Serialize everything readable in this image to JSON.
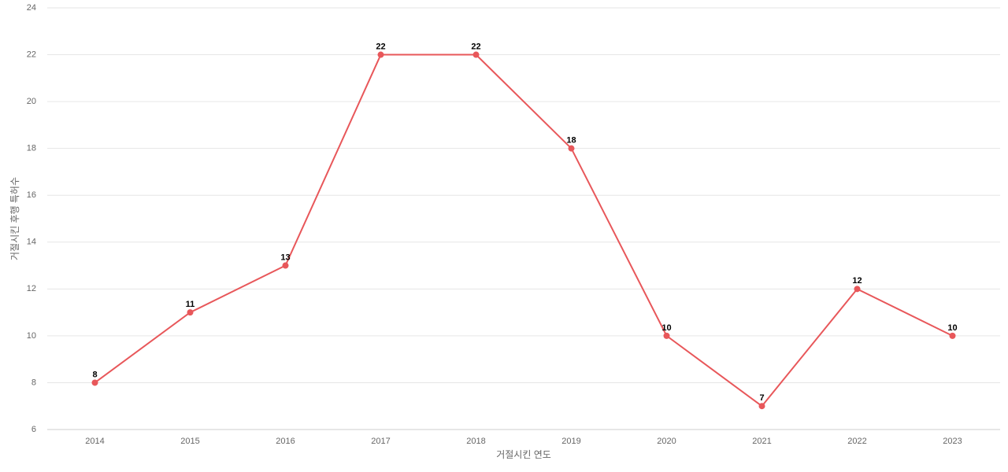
{
  "chart_data": {
    "type": "line",
    "x_label": "거절시킨 연도",
    "y_label": "거절시킨 후행 특허수",
    "categories": [
      "2014",
      "2015",
      "2016",
      "2017",
      "2018",
      "2019",
      "2020",
      "2021",
      "2022",
      "2023"
    ],
    "series": [
      {
        "name": "거절시킨 후행 특허수",
        "color": "#e8575a",
        "values": [
          8,
          11,
          13,
          22,
          22,
          18,
          10,
          7,
          12,
          10
        ]
      }
    ],
    "ylim": [
      6,
      24
    ],
    "yticks": [
      6,
      8,
      10,
      12,
      14,
      16,
      18,
      20,
      22,
      24
    ],
    "grid": true
  }
}
